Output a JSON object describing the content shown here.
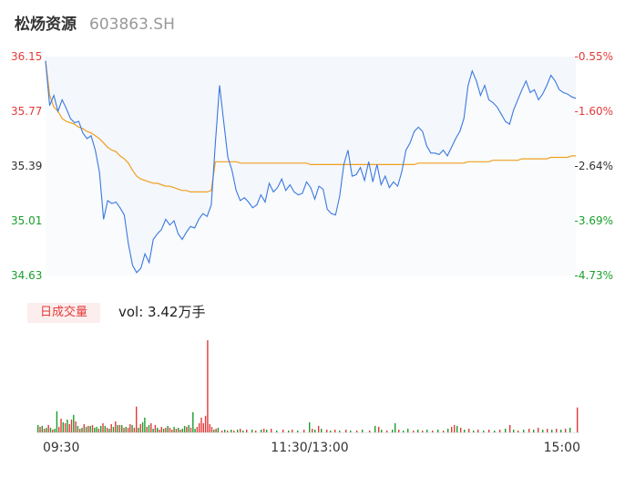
{
  "header": {
    "name": "松炀资源",
    "code": "603863.SH"
  },
  "colors": {
    "up": "#e33a3a",
    "down": "#1a9e2c",
    "price_line": "#3a78e0",
    "avg_line": "#f0a020",
    "axis_text": "#333333",
    "fill": "#f4f7fc"
  },
  "volume": {
    "tag": "日成交量",
    "label": "vol: 3.42万手"
  },
  "chart_data": {
    "type": "line",
    "y_labels_left": [
      "36.15",
      "35.77",
      "35.39",
      "35.01",
      "34.63"
    ],
    "y_labels_right": [
      "-0.55%",
      "-1.60%",
      "-2.64%",
      "-3.69%",
      "-4.73%"
    ],
    "x_labels": [
      "09:30",
      "11:30/13:00",
      "15:00"
    ],
    "ylim": [
      34.63,
      36.15
    ],
    "series": [
      {
        "values": [
          36.12,
          35.81,
          35.88,
          35.77,
          35.85,
          35.79,
          35.72,
          35.69,
          35.7,
          35.62,
          35.58,
          35.6,
          35.5,
          35.35,
          35.02,
          35.15,
          35.13,
          35.14,
          35.1,
          35.05,
          34.85,
          34.7,
          34.65,
          34.68,
          34.78,
          34.72,
          34.88,
          34.92,
          34.95,
          35.02,
          34.98,
          35.01,
          34.92,
          34.88,
          34.93,
          34.97,
          34.96,
          35.02,
          35.06,
          35.04,
          35.12,
          35.55,
          35.95,
          35.7,
          35.45,
          35.36,
          35.22,
          35.15,
          35.17,
          35.14,
          35.1,
          35.12,
          35.19,
          35.14,
          35.27,
          35.21,
          35.24,
          35.3,
          35.22,
          35.26,
          35.21,
          35.19,
          35.2,
          35.28,
          35.24,
          35.16,
          35.25,
          35.23,
          35.09,
          35.06,
          35.05,
          35.18,
          35.4,
          35.5,
          35.32,
          35.33,
          35.38,
          35.29,
          35.42,
          35.28,
          35.4,
          35.26,
          35.32,
          35.24,
          35.28,
          35.25,
          35.35,
          35.5,
          35.55,
          35.63,
          35.66,
          35.63,
          35.53,
          35.48,
          35.48,
          35.47,
          35.5,
          35.46,
          35.52,
          35.58,
          35.63,
          35.72,
          35.95,
          36.05,
          35.98,
          35.88,
          35.95,
          35.85,
          35.83,
          35.8,
          35.75,
          35.7,
          35.68,
          35.78,
          35.85,
          35.92,
          35.98,
          35.9,
          35.92,
          35.85,
          35.89,
          35.95,
          36.02,
          35.98,
          35.92,
          35.9,
          35.89,
          35.87,
          35.86
        ],
        "x_end": 241,
        "break_index": 42
      },
      {
        "values": [
          36.12,
          35.88,
          35.8,
          35.77,
          35.72,
          35.7,
          35.69,
          35.68,
          35.66,
          35.65,
          35.63,
          35.62,
          35.6,
          35.58,
          35.55,
          35.52,
          35.5,
          35.49,
          35.46,
          35.44,
          35.41,
          35.36,
          35.32,
          35.3,
          35.29,
          35.28,
          35.27,
          35.27,
          35.26,
          35.25,
          35.25,
          35.24,
          35.23,
          35.22,
          35.22,
          35.21,
          35.21,
          35.21,
          35.21,
          35.21,
          35.22,
          35.42,
          35.42,
          35.42,
          35.42,
          35.42,
          35.42,
          35.41,
          35.41,
          35.41,
          35.41,
          35.41,
          35.41,
          35.41,
          35.41,
          35.41,
          35.41,
          35.41,
          35.41,
          35.41,
          35.41,
          35.41,
          35.41,
          35.41,
          35.4,
          35.4,
          35.4,
          35.4,
          35.4,
          35.4,
          35.4,
          35.4,
          35.4,
          35.4,
          35.4,
          35.4,
          35.4,
          35.4,
          35.4,
          35.4,
          35.4,
          35.4,
          35.4,
          35.4,
          35.4,
          35.4,
          35.4,
          35.4,
          35.4,
          35.4,
          35.41,
          35.41,
          35.41,
          35.41,
          35.41,
          35.41,
          35.41,
          35.41,
          35.41,
          35.41,
          35.41,
          35.41,
          35.42,
          35.42,
          35.42,
          35.42,
          35.42,
          35.42,
          35.43,
          35.43,
          35.43,
          35.43,
          35.43,
          35.43,
          35.43,
          35.44,
          35.44,
          35.44,
          35.44,
          35.44,
          35.44,
          35.44,
          35.45,
          35.45,
          35.45,
          35.45,
          35.45,
          35.46,
          35.46
        ],
        "x_end": 241
      }
    ],
    "volumes": [
      {
        "v": 8,
        "c": "down"
      },
      {
        "v": 6,
        "c": "up"
      },
      {
        "v": 7,
        "c": "down"
      },
      {
        "v": 4,
        "c": "up"
      },
      {
        "v": 5,
        "c": "down"
      },
      {
        "v": 8,
        "c": "up"
      },
      {
        "v": 5,
        "c": "down"
      },
      {
        "v": 3,
        "c": "up"
      },
      {
        "v": 4,
        "c": "down"
      },
      {
        "v": 23,
        "c": "down"
      },
      {
        "v": 6,
        "c": "up"
      },
      {
        "v": 15,
        "c": "up"
      },
      {
        "v": 11,
        "c": "down"
      },
      {
        "v": 10,
        "c": "up"
      },
      {
        "v": 14,
        "c": "down"
      },
      {
        "v": 9,
        "c": "up"
      },
      {
        "v": 14,
        "c": "up"
      },
      {
        "v": 19,
        "c": "down"
      },
      {
        "v": 12,
        "c": "up"
      },
      {
        "v": 7,
        "c": "down"
      },
      {
        "v": 4,
        "c": "up"
      },
      {
        "v": 5,
        "c": "down"
      },
      {
        "v": 9,
        "c": "up"
      },
      {
        "v": 6,
        "c": "down"
      },
      {
        "v": 7,
        "c": "up"
      },
      {
        "v": 7,
        "c": "down"
      },
      {
        "v": 8,
        "c": "up"
      },
      {
        "v": 5,
        "c": "down"
      },
      {
        "v": 6,
        "c": "down"
      },
      {
        "v": 4,
        "c": "up"
      },
      {
        "v": 7,
        "c": "down"
      },
      {
        "v": 10,
        "c": "up"
      },
      {
        "v": 7,
        "c": "down"
      },
      {
        "v": 5,
        "c": "up"
      },
      {
        "v": 4,
        "c": "down"
      },
      {
        "v": 9,
        "c": "up"
      },
      {
        "v": 6,
        "c": "down"
      },
      {
        "v": 12,
        "c": "up"
      },
      {
        "v": 8,
        "c": "down"
      },
      {
        "v": 8,
        "c": "up"
      },
      {
        "v": 8,
        "c": "down"
      },
      {
        "v": 5,
        "c": "up"
      },
      {
        "v": 6,
        "c": "down"
      },
      {
        "v": 5,
        "c": "up"
      },
      {
        "v": 9,
        "c": "up"
      },
      {
        "v": 8,
        "c": "down"
      },
      {
        "v": 5,
        "c": "up"
      },
      {
        "v": 28,
        "c": "up"
      },
      {
        "v": 5,
        "c": "down"
      },
      {
        "v": 9,
        "c": "up"
      },
      {
        "v": 11,
        "c": "down"
      },
      {
        "v": 16,
        "c": "down"
      },
      {
        "v": 6,
        "c": "up"
      },
      {
        "v": 8,
        "c": "down"
      },
      {
        "v": 10,
        "c": "up"
      },
      {
        "v": 4,
        "c": "down"
      },
      {
        "v": 8,
        "c": "up"
      },
      {
        "v": 5,
        "c": "down"
      },
      {
        "v": 3,
        "c": "up"
      },
      {
        "v": 6,
        "c": "up"
      },
      {
        "v": 4,
        "c": "down"
      },
      {
        "v": 5,
        "c": "up"
      },
      {
        "v": 7,
        "c": "down"
      },
      {
        "v": 5,
        "c": "up"
      },
      {
        "v": 3,
        "c": "up"
      },
      {
        "v": 6,
        "c": "down"
      },
      {
        "v": 4,
        "c": "up"
      },
      {
        "v": 5,
        "c": "down"
      },
      {
        "v": 3,
        "c": "up"
      },
      {
        "v": 4,
        "c": "down"
      },
      {
        "v": 7,
        "c": "down"
      },
      {
        "v": 6,
        "c": "up"
      },
      {
        "v": 8,
        "c": "down"
      },
      {
        "v": 5,
        "c": "up"
      },
      {
        "v": 22,
        "c": "down"
      },
      {
        "v": 4,
        "c": "down"
      },
      {
        "v": 6,
        "c": "up"
      },
      {
        "v": 10,
        "c": "up"
      },
      {
        "v": 16,
        "c": "up"
      },
      {
        "v": 10,
        "c": "up"
      },
      {
        "v": 18,
        "c": "up"
      },
      {
        "v": 100,
        "c": "up"
      },
      {
        "v": 9,
        "c": "up"
      },
      {
        "v": 6,
        "c": "up"
      },
      {
        "v": 3,
        "c": "down"
      },
      {
        "v": 4,
        "c": "up"
      },
      {
        "v": 5,
        "c": "down"
      }
    ],
    "vol_tail": [
      {
        "pos": 243,
        "v": 2,
        "c": "up"
      },
      {
        "pos": 246,
        "v": 3,
        "c": "down"
      },
      {
        "pos": 249,
        "v": 2,
        "c": "up"
      },
      {
        "pos": 253,
        "v": 3,
        "c": "down"
      },
      {
        "pos": 256,
        "v": 2,
        "c": "up"
      },
      {
        "pos": 260,
        "v": 3,
        "c": "down"
      },
      {
        "pos": 263,
        "v": 4,
        "c": "up"
      },
      {
        "pos": 266,
        "v": 2,
        "c": "down"
      },
      {
        "pos": 270,
        "v": 3,
        "c": "up"
      },
      {
        "pos": 276,
        "v": 3,
        "c": "down"
      },
      {
        "pos": 280,
        "v": 2,
        "c": "up"
      },
      {
        "pos": 286,
        "v": 3,
        "c": "down"
      },
      {
        "pos": 289,
        "v": 4,
        "c": "up"
      },
      {
        "pos": 292,
        "v": 3,
        "c": "down"
      },
      {
        "pos": 297,
        "v": 4,
        "c": "up"
      },
      {
        "pos": 303,
        "v": 2,
        "c": "down"
      },
      {
        "pos": 310,
        "v": 3,
        "c": "up"
      },
      {
        "pos": 316,
        "v": 2,
        "c": "down"
      },
      {
        "pos": 320,
        "v": 3,
        "c": "up"
      },
      {
        "pos": 326,
        "v": 2,
        "c": "down"
      },
      {
        "pos": 333,
        "v": 3,
        "c": "up"
      },
      {
        "pos": 339,
        "v": 11,
        "c": "down"
      },
      {
        "pos": 342,
        "v": 4,
        "c": "up"
      },
      {
        "pos": 345,
        "v": 3,
        "c": "down"
      },
      {
        "pos": 349,
        "v": 7,
        "c": "up"
      },
      {
        "pos": 352,
        "v": 4,
        "c": "down"
      },
      {
        "pos": 358,
        "v": 3,
        "c": "up"
      },
      {
        "pos": 362,
        "v": 2,
        "c": "down"
      },
      {
        "pos": 367,
        "v": 3,
        "c": "up"
      },
      {
        "pos": 372,
        "v": 2,
        "c": "down"
      },
      {
        "pos": 379,
        "v": 3,
        "c": "up"
      },
      {
        "pos": 384,
        "v": 2,
        "c": "down"
      },
      {
        "pos": 391,
        "v": 2,
        "c": "up"
      },
      {
        "pos": 397,
        "v": 3,
        "c": "down"
      },
      {
        "pos": 405,
        "v": 2,
        "c": "up"
      },
      {
        "pos": 411,
        "v": 7,
        "c": "down"
      },
      {
        "pos": 415,
        "v": 6,
        "c": "up"
      },
      {
        "pos": 418,
        "v": 3,
        "c": "down"
      },
      {
        "pos": 424,
        "v": 2,
        "c": "up"
      },
      {
        "pos": 430,
        "v": 3,
        "c": "down"
      },
      {
        "pos": 433,
        "v": 10,
        "c": "down"
      },
      {
        "pos": 437,
        "v": 3,
        "c": "up"
      },
      {
        "pos": 442,
        "v": 2,
        "c": "down"
      },
      {
        "pos": 447,
        "v": 4,
        "c": "down"
      },
      {
        "pos": 453,
        "v": 2,
        "c": "up"
      },
      {
        "pos": 458,
        "v": 3,
        "c": "down"
      },
      {
        "pos": 463,
        "v": 2,
        "c": "up"
      },
      {
        "pos": 468,
        "v": 3,
        "c": "down"
      },
      {
        "pos": 474,
        "v": 2,
        "c": "up"
      },
      {
        "pos": 480,
        "v": 3,
        "c": "down"
      },
      {
        "pos": 486,
        "v": 2,
        "c": "up"
      },
      {
        "pos": 491,
        "v": 4,
        "c": "down"
      },
      {
        "pos": 495,
        "v": 6,
        "c": "up"
      },
      {
        "pos": 498,
        "v": 8,
        "c": "up"
      },
      {
        "pos": 501,
        "v": 7,
        "c": "down"
      },
      {
        "pos": 505,
        "v": 5,
        "c": "up"
      },
      {
        "pos": 509,
        "v": 3,
        "c": "down"
      },
      {
        "pos": 514,
        "v": 4,
        "c": "up"
      },
      {
        "pos": 519,
        "v": 2,
        "c": "down"
      },
      {
        "pos": 524,
        "v": 3,
        "c": "up"
      },
      {
        "pos": 530,
        "v": 2,
        "c": "down"
      },
      {
        "pos": 536,
        "v": 3,
        "c": "up"
      },
      {
        "pos": 542,
        "v": 2,
        "c": "down"
      },
      {
        "pos": 548,
        "v": 3,
        "c": "up"
      },
      {
        "pos": 554,
        "v": 4,
        "c": "down"
      },
      {
        "pos": 559,
        "v": 8,
        "c": "up"
      },
      {
        "pos": 563,
        "v": 3,
        "c": "down"
      },
      {
        "pos": 568,
        "v": 2,
        "c": "up"
      },
      {
        "pos": 574,
        "v": 3,
        "c": "down"
      },
      {
        "pos": 580,
        "v": 4,
        "c": "up"
      },
      {
        "pos": 585,
        "v": 3,
        "c": "down"
      },
      {
        "pos": 590,
        "v": 5,
        "c": "up"
      },
      {
        "pos": 595,
        "v": 3,
        "c": "down"
      },
      {
        "pos": 600,
        "v": 4,
        "c": "up"
      },
      {
        "pos": 605,
        "v": 3,
        "c": "down"
      },
      {
        "pos": 610,
        "v": 4,
        "c": "up"
      },
      {
        "pos": 615,
        "v": 3,
        "c": "down"
      },
      {
        "pos": 620,
        "v": 4,
        "c": "up"
      },
      {
        "pos": 625,
        "v": 5,
        "c": "down"
      },
      {
        "pos": 633,
        "v": 27,
        "c": "up"
      }
    ]
  }
}
